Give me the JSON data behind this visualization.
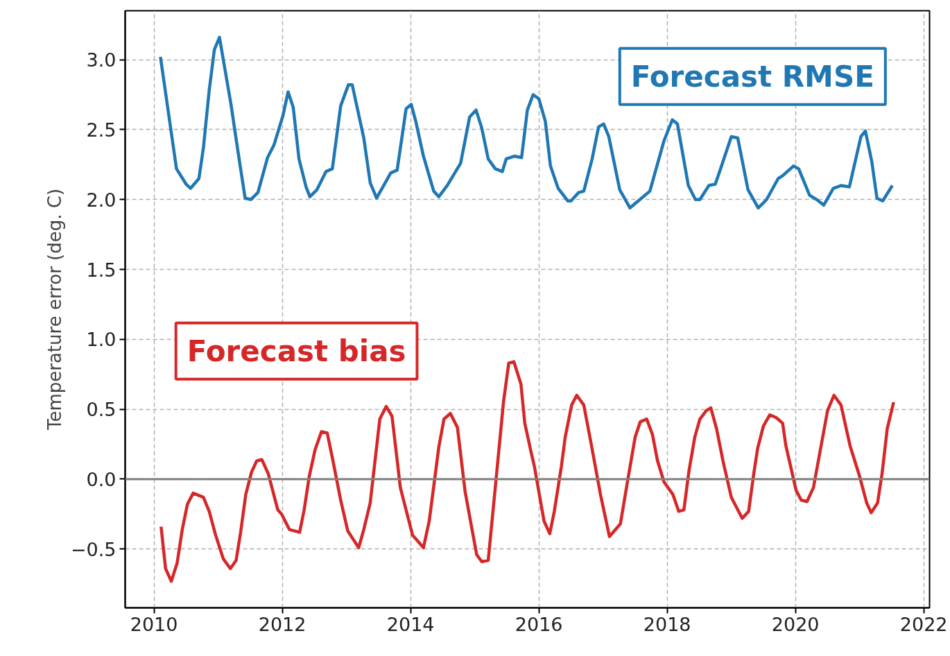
{
  "chart_data": {
    "type": "line",
    "ylabel": "Temperature error (deg. C)",
    "xlim": [
      2009.55,
      2022.09
    ],
    "xticks": [
      2010,
      2012,
      2014,
      2016,
      2018,
      2020,
      2022
    ],
    "ylim": [
      -0.92,
      3.35
    ],
    "yticks": [
      {
        "value": -0.5,
        "label": "−0.5"
      },
      {
        "value": 0,
        "label": "0.0"
      },
      {
        "value": 0.5,
        "label": "0.5"
      },
      {
        "value": 1,
        "label": "1.0"
      },
      {
        "value": 1.5,
        "label": "1.5"
      },
      {
        "value": 2,
        "label": "2.0"
      },
      {
        "value": 2.5,
        "label": "2.5"
      },
      {
        "value": 3,
        "label": "3.0"
      }
    ],
    "grid": true,
    "line_style": "solid",
    "marker": "none",
    "ref_lines": [
      {
        "axis": "y",
        "value": 0,
        "color": "#808080"
      }
    ],
    "series": [
      {
        "name": "Forecast RMSE",
        "color": "#1f77b4",
        "x": [
          2010.1,
          2010.35,
          2010.5,
          2010.57,
          2010.7,
          2010.77,
          2010.86,
          2010.94,
          2011.02,
          2011.2,
          2011.3,
          2011.42,
          2011.51,
          2011.62,
          2011.77,
          2011.87,
          2012.01,
          2012.09,
          2012.17,
          2012.26,
          2012.37,
          2012.43,
          2012.54,
          2012.68,
          2012.78,
          2012.91,
          2013.03,
          2013.09,
          2013.27,
          2013.37,
          2013.47,
          2013.69,
          2013.79,
          2013.93,
          2014.01,
          2014.08,
          2014.2,
          2014.36,
          2014.44,
          2014.57,
          2014.78,
          2014.92,
          2015.02,
          2015.11,
          2015.21,
          2015.32,
          2015.43,
          2015.49,
          2015.62,
          2015.73,
          2015.82,
          2015.91,
          2016.0,
          2016.1,
          2016.18,
          2016.3,
          2016.45,
          2016.5,
          2016.62,
          2016.7,
          2016.83,
          2016.93,
          2017.01,
          2017.09,
          2017.26,
          2017.42,
          2017.6,
          2017.73,
          2017.95,
          2018.08,
          2018.16,
          2018.33,
          2018.44,
          2018.51,
          2018.65,
          2018.75,
          2018.84,
          2019.0,
          2019.1,
          2019.26,
          2019.42,
          2019.55,
          2019.73,
          2019.8,
          2019.97,
          2020.05,
          2020.22,
          2020.33,
          2020.44,
          2020.59,
          2020.71,
          2020.84,
          2021.02,
          2021.09,
          2021.19,
          2021.27,
          2021.36,
          2021.51
        ],
        "values": [
          3.02,
          2.22,
          2.11,
          2.08,
          2.15,
          2.37,
          2.78,
          3.07,
          3.16,
          2.68,
          2.37,
          2.01,
          2.0,
          2.05,
          2.3,
          2.39,
          2.6,
          2.77,
          2.66,
          2.29,
          2.09,
          2.02,
          2.07,
          2.2,
          2.22,
          2.67,
          2.82,
          2.82,
          2.44,
          2.12,
          2.01,
          2.19,
          2.21,
          2.65,
          2.68,
          2.56,
          2.31,
          2.06,
          2.02,
          2.1,
          2.26,
          2.59,
          2.64,
          2.51,
          2.29,
          2.22,
          2.2,
          2.29,
          2.31,
          2.3,
          2.64,
          2.75,
          2.72,
          2.56,
          2.24,
          2.08,
          1.99,
          1.99,
          2.05,
          2.06,
          2.29,
          2.52,
          2.54,
          2.45,
          2.07,
          1.94,
          2.01,
          2.06,
          2.42,
          2.57,
          2.54,
          2.1,
          2.0,
          2.0,
          2.1,
          2.11,
          2.23,
          2.45,
          2.44,
          2.07,
          1.94,
          2.0,
          2.15,
          2.17,
          2.24,
          2.22,
          2.03,
          2.0,
          1.96,
          2.08,
          2.1,
          2.09,
          2.45,
          2.49,
          2.27,
          2.01,
          1.99,
          2.1
        ]
      },
      {
        "name": "Forecast bias",
        "color": "#d62728",
        "x": [
          2010.11,
          2010.18,
          2010.27,
          2010.36,
          2010.44,
          2010.52,
          2010.61,
          2010.77,
          2010.86,
          2010.96,
          2011.08,
          2011.19,
          2011.28,
          2011.35,
          2011.43,
          2011.52,
          2011.6,
          2011.68,
          2011.78,
          2011.93,
          2011.99,
          2012.11,
          2012.27,
          2012.34,
          2012.42,
          2012.51,
          2012.61,
          2012.7,
          2012.79,
          2012.91,
          2013.02,
          2013.19,
          2013.27,
          2013.37,
          2013.43,
          2013.52,
          2013.62,
          2013.71,
          2013.84,
          2014.03,
          2014.2,
          2014.29,
          2014.44,
          2014.52,
          2014.62,
          2014.73,
          2014.85,
          2015.03,
          2015.11,
          2015.21,
          2015.32,
          2015.45,
          2015.53,
          2015.61,
          2015.72,
          2015.78,
          2015.88,
          2015.93,
          2016.08,
          2016.17,
          2016.24,
          2016.35,
          2016.41,
          2016.51,
          2016.59,
          2016.7,
          2016.82,
          2016.96,
          2017.1,
          2017.27,
          2017.38,
          2017.5,
          2017.58,
          2017.68,
          2017.77,
          2017.85,
          2017.95,
          2018.09,
          2018.18,
          2018.26,
          2018.34,
          2018.43,
          2018.51,
          2018.61,
          2018.68,
          2018.77,
          2018.87,
          2019.0,
          2019.17,
          2019.27,
          2019.35,
          2019.41,
          2019.5,
          2019.6,
          2019.7,
          2019.8,
          2019.85,
          2020.01,
          2020.09,
          2020.18,
          2020.28,
          2020.38,
          2020.5,
          2020.6,
          2020.71,
          2020.85,
          2021.0,
          2021.11,
          2021.18,
          2021.28,
          2021.35,
          2021.43,
          2021.53
        ],
        "values": [
          -0.34,
          -0.64,
          -0.73,
          -0.6,
          -0.36,
          -0.18,
          -0.1,
          -0.13,
          -0.23,
          -0.4,
          -0.57,
          -0.64,
          -0.58,
          -0.38,
          -0.11,
          0.05,
          0.13,
          0.14,
          0.04,
          -0.22,
          -0.25,
          -0.36,
          -0.38,
          -0.22,
          0.02,
          0.21,
          0.34,
          0.33,
          0.13,
          -0.15,
          -0.37,
          -0.49,
          -0.36,
          -0.17,
          0.07,
          0.43,
          0.52,
          0.45,
          -0.06,
          -0.4,
          -0.49,
          -0.3,
          0.23,
          0.43,
          0.47,
          0.37,
          -0.09,
          -0.54,
          -0.59,
          -0.58,
          -0.06,
          0.56,
          0.83,
          0.84,
          0.68,
          0.4,
          0.19,
          0.09,
          -0.3,
          -0.39,
          -0.23,
          0.09,
          0.3,
          0.53,
          0.6,
          0.53,
          0.24,
          -0.11,
          -0.41,
          -0.32,
          -0.02,
          0.3,
          0.41,
          0.43,
          0.32,
          0.13,
          -0.02,
          -0.11,
          -0.23,
          -0.22,
          0.06,
          0.3,
          0.43,
          0.49,
          0.51,
          0.36,
          0.13,
          -0.13,
          -0.28,
          -0.23,
          0.04,
          0.22,
          0.38,
          0.46,
          0.44,
          0.4,
          0.24,
          -0.08,
          -0.15,
          -0.16,
          -0.06,
          0.19,
          0.49,
          0.6,
          0.53,
          0.24,
          0.02,
          -0.17,
          -0.24,
          -0.17,
          0.04,
          0.36,
          0.55
        ]
      }
    ]
  }
}
